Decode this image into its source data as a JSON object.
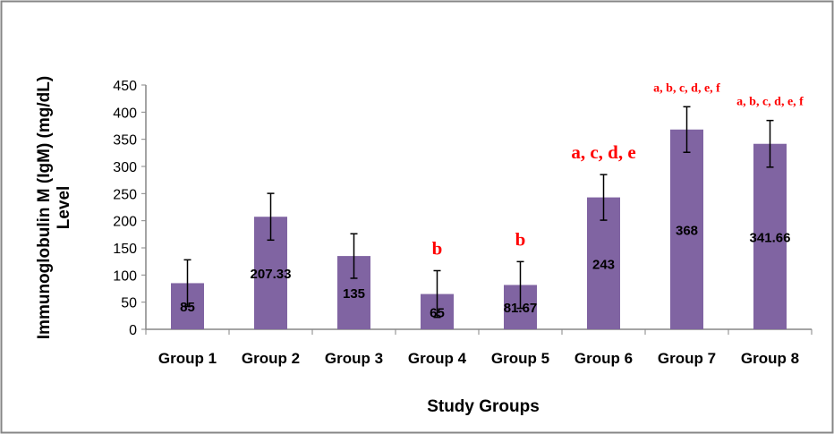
{
  "chart_data": {
    "type": "bar",
    "title": "",
    "xlabel": "Study Groups",
    "ylabel_lines": [
      "Immunoglobulin  M (IgM) (mg/dL)",
      "Level"
    ],
    "categories": [
      "Group 1",
      "Group 2",
      "Group 3",
      "Group 4",
      "Group 5",
      "Group 6",
      "Group 7",
      "Group 8"
    ],
    "values": [
      85,
      207.33,
      135,
      65,
      81.67,
      243,
      368,
      341.66
    ],
    "value_labels": [
      "85",
      "207.33",
      "135",
      "65",
      "81.67",
      "243",
      "368",
      "341.66"
    ],
    "error": [
      43,
      43,
      41,
      43,
      43,
      42,
      42,
      43
    ],
    "significance": [
      "",
      "",
      "",
      "b",
      "b",
      "a, c, d, e",
      "a, b, c, d, e, f",
      "a, b, c, d, e, f"
    ],
    "ylim": [
      0,
      450
    ],
    "yticks": [
      0,
      50,
      100,
      150,
      200,
      250,
      300,
      350,
      400,
      450
    ],
    "grid": false,
    "legend": "none",
    "colors": {
      "bar": "#8064a2",
      "significance": "#ff0000",
      "border": "#868686"
    }
  }
}
